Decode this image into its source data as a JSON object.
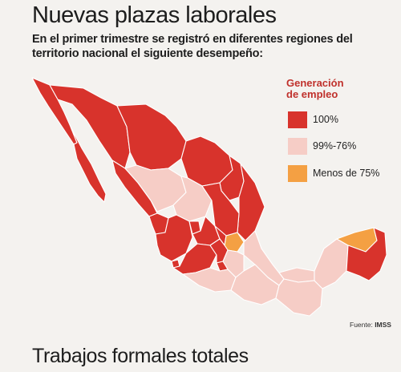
{
  "title": "Nuevas plazas laborales",
  "subtitle": "En el primer trimestre se registró en diferentes regiones del territorio nacional el siguiente desempeño:",
  "legend": {
    "title_line1": "Generación",
    "title_line2": "de empleo",
    "items": [
      {
        "label": "100%",
        "color": "#d8332c"
      },
      {
        "label": "99%-76%",
        "color": "#f6cdc6"
      },
      {
        "label": "Menos de 75%",
        "color": "#f4a043"
      }
    ]
  },
  "source": {
    "prefix": "Fuente: ",
    "name": "IMSS"
  },
  "footer_title": "Trabajos formales totales"
}
